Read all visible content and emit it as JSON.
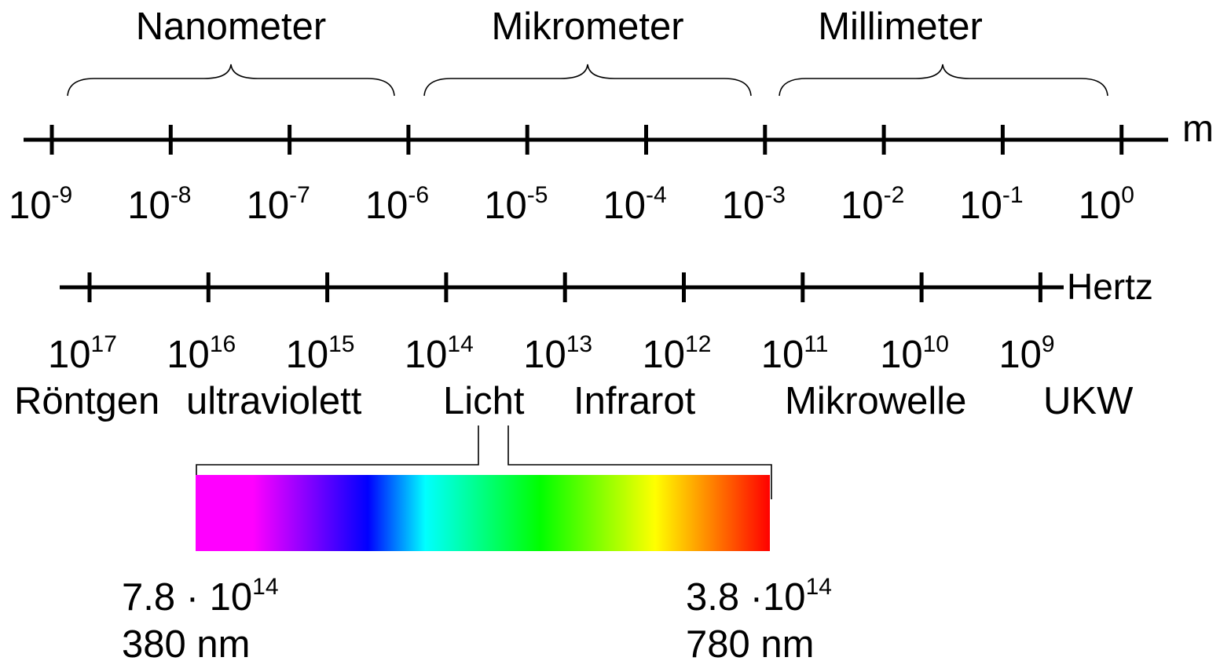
{
  "units_top": [
    {
      "label": "Nanometer"
    },
    {
      "label": "Mikrometer"
    },
    {
      "label": "Millimeter"
    }
  ],
  "wavelength_axis": {
    "unit": "m",
    "ticks": [
      {
        "base": "10",
        "exp": "-9"
      },
      {
        "base": "10",
        "exp": "-8"
      },
      {
        "base": "10",
        "exp": "-7"
      },
      {
        "base": "10",
        "exp": "-6"
      },
      {
        "base": "10",
        "exp": "-5"
      },
      {
        "base": "10",
        "exp": "-4"
      },
      {
        "base": "10",
        "exp": "-3"
      },
      {
        "base": "10",
        "exp": "-2"
      },
      {
        "base": "10",
        "exp": "-1"
      },
      {
        "base": "10",
        "exp": "0"
      }
    ]
  },
  "frequency_axis": {
    "unit": "Hertz",
    "ticks": [
      {
        "base": "10",
        "exp": "17"
      },
      {
        "base": "10",
        "exp": "16"
      },
      {
        "base": "10",
        "exp": "15"
      },
      {
        "base": "10",
        "exp": "14"
      },
      {
        "base": "10",
        "exp": "13"
      },
      {
        "base": "10",
        "exp": "12"
      },
      {
        "base": "10",
        "exp": "11"
      },
      {
        "base": "10",
        "exp": "10"
      },
      {
        "base": "10",
        "exp": "9"
      }
    ]
  },
  "regions": [
    {
      "label": "Röntgen"
    },
    {
      "label": "ultraviolett"
    },
    {
      "label": "Licht"
    },
    {
      "label": "Infrarot"
    },
    {
      "label": "Mikrowelle"
    },
    {
      "label": "UKW"
    }
  ],
  "spectrum": {
    "colors": [
      "#ff00ff",
      "#ff00ff",
      "#8000ff",
      "#0000ff",
      "#00ffff",
      "#00ff80",
      "#00ff00",
      "#80ff00",
      "#ffff00",
      "#ff8000",
      "#ff0000"
    ],
    "left": {
      "freq_base": "7.8 · 10",
      "freq_exp": "14",
      "wavelength": "380 nm"
    },
    "right": {
      "freq_base": "3.8 ·10",
      "freq_exp": "14",
      "wavelength": "780 nm"
    }
  }
}
